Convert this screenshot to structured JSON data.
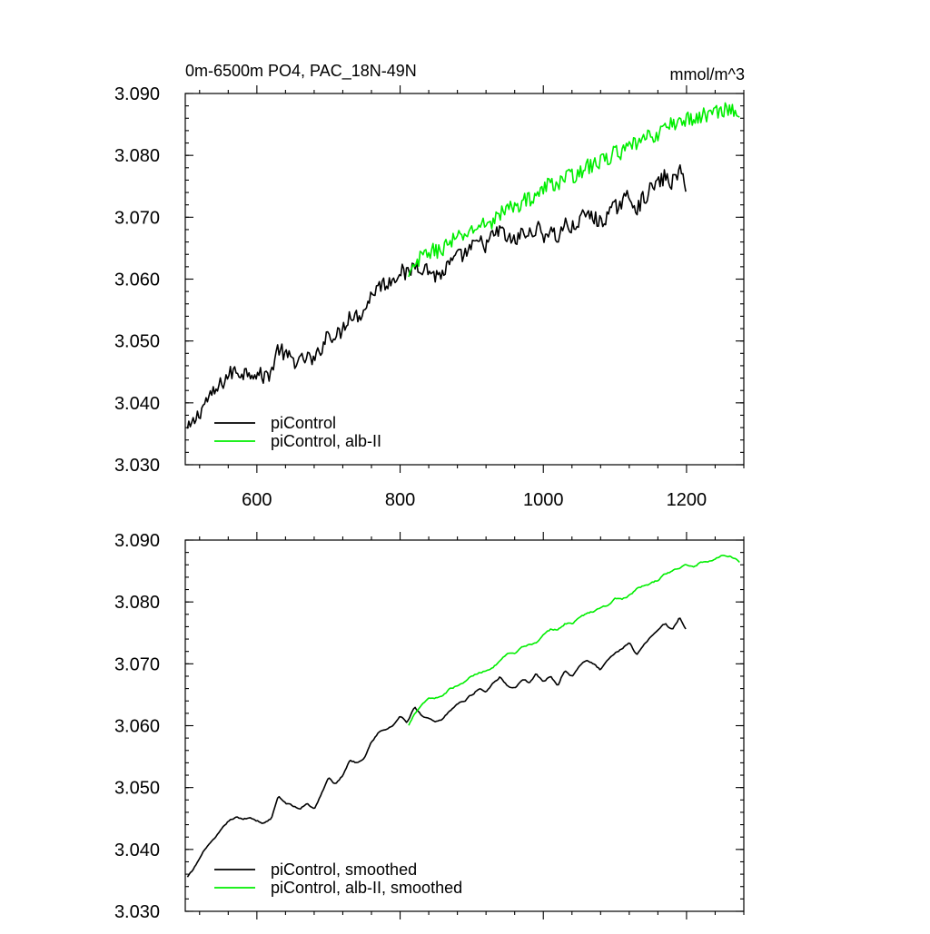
{
  "chart_data": [
    {
      "type": "line",
      "title": "0m-6500m PO4, PAC_18N-49N",
      "units": "mmol/m^3",
      "xlabel": "",
      "ylabel": "",
      "xlim": [
        500,
        1280
      ],
      "ylim": [
        3.03,
        3.09
      ],
      "x_ticks": [
        600,
        800,
        1000,
        1200
      ],
      "y_ticks": [
        "3.030",
        "3.040",
        "3.050",
        "3.060",
        "3.070",
        "3.080",
        "3.090"
      ],
      "legend_position": "bottom-left",
      "series": [
        {
          "name": "piControl",
          "color": "#000000",
          "x": [
            503,
            510,
            520,
            530,
            540,
            550,
            560,
            570,
            580,
            590,
            600,
            610,
            620,
            630,
            640,
            650,
            660,
            670,
            680,
            690,
            700,
            710,
            720,
            730,
            740,
            750,
            760,
            770,
            780,
            790,
            800,
            810,
            820,
            830,
            840,
            850,
            860,
            870,
            880,
            890,
            900,
            910,
            920,
            930,
            940,
            950,
            960,
            970,
            980,
            990,
            1000,
            1010,
            1020,
            1030,
            1040,
            1050,
            1060,
            1070,
            1080,
            1090,
            1100,
            1110,
            1120,
            1130,
            1140,
            1150,
            1160,
            1170,
            1180,
            1190,
            1200
          ],
          "values": [
            3.0355,
            3.0365,
            3.0385,
            3.0405,
            3.0415,
            3.043,
            3.0445,
            3.0452,
            3.0448,
            3.0452,
            3.0447,
            3.0442,
            3.045,
            3.049,
            3.0475,
            3.047,
            3.0465,
            3.0475,
            3.0465,
            3.049,
            3.0515,
            3.0505,
            3.052,
            3.0545,
            3.054,
            3.055,
            3.0575,
            3.059,
            3.0593,
            3.06,
            3.0615,
            3.0605,
            3.0625,
            3.062,
            3.0615,
            3.0605,
            3.061,
            3.0625,
            3.0635,
            3.064,
            3.065,
            3.066,
            3.0655,
            3.067,
            3.068,
            3.0665,
            3.066,
            3.0675,
            3.067,
            3.0685,
            3.067,
            3.068,
            3.0665,
            3.069,
            3.068,
            3.0695,
            3.0705,
            3.07,
            3.069,
            3.0705,
            3.0715,
            3.0725,
            3.0735,
            3.0715,
            3.073,
            3.0745,
            3.0755,
            3.0765,
            3.0755,
            3.0775,
            3.075
          ],
          "jitter_amplitude": 0.0013
        },
        {
          "name": "piControl, alb-II",
          "color": "#00ee00",
          "x": [
            812,
            820,
            830,
            840,
            850,
            860,
            870,
            880,
            890,
            900,
            910,
            920,
            930,
            940,
            950,
            960,
            970,
            980,
            990,
            1000,
            1010,
            1020,
            1030,
            1040,
            1050,
            1060,
            1070,
            1080,
            1090,
            1100,
            1110,
            1120,
            1130,
            1140,
            1150,
            1160,
            1170,
            1180,
            1190,
            1200,
            1210,
            1220,
            1230,
            1240,
            1250,
            1260,
            1270,
            1275
          ],
          "values": [
            3.06,
            3.062,
            3.0635,
            3.0645,
            3.0645,
            3.065,
            3.066,
            3.0665,
            3.067,
            3.068,
            3.0685,
            3.069,
            3.0695,
            3.0705,
            3.0715,
            3.0715,
            3.0725,
            3.073,
            3.0735,
            3.0745,
            3.0755,
            3.0755,
            3.0765,
            3.0765,
            3.0775,
            3.078,
            3.0785,
            3.079,
            3.0795,
            3.0805,
            3.0805,
            3.081,
            3.082,
            3.0825,
            3.083,
            3.0835,
            3.0845,
            3.085,
            3.0855,
            3.086,
            3.0855,
            3.0865,
            3.0865,
            3.087,
            3.0875,
            3.0875,
            3.087,
            3.0865
          ],
          "jitter_amplitude": 0.0013
        }
      ]
    },
    {
      "type": "line",
      "title": "",
      "units": "",
      "xlabel": "",
      "ylabel": "",
      "xlim": [
        500,
        1280
      ],
      "ylim": [
        3.03,
        3.09
      ],
      "x_ticks": [
        600,
        800,
        1000,
        1200
      ],
      "x_tick_labels_visible": false,
      "y_ticks": [
        "3.030",
        "3.040",
        "3.050",
        "3.060",
        "3.070",
        "3.080",
        "3.090"
      ],
      "legend_position": "bottom-left",
      "series": [
        {
          "name": "piControl, smoothed",
          "color": "#000000",
          "x": [
            503,
            510,
            520,
            530,
            540,
            550,
            560,
            570,
            580,
            590,
            600,
            610,
            620,
            630,
            640,
            650,
            660,
            670,
            680,
            690,
            700,
            710,
            720,
            730,
            740,
            750,
            760,
            770,
            780,
            790,
            800,
            810,
            820,
            830,
            840,
            850,
            860,
            870,
            880,
            890,
            900,
            910,
            920,
            930,
            940,
            950,
            960,
            970,
            980,
            990,
            1000,
            1010,
            1020,
            1030,
            1040,
            1050,
            1060,
            1070,
            1080,
            1090,
            1100,
            1110,
            1120,
            1130,
            1140,
            1150,
            1160,
            1170,
            1180,
            1190,
            1200
          ],
          "values": [
            3.0355,
            3.0365,
            3.0385,
            3.0405,
            3.0415,
            3.043,
            3.0445,
            3.0452,
            3.0448,
            3.0452,
            3.0447,
            3.0442,
            3.045,
            3.0485,
            3.0475,
            3.047,
            3.0465,
            3.0475,
            3.0465,
            3.049,
            3.0515,
            3.0505,
            3.052,
            3.0545,
            3.054,
            3.055,
            3.0575,
            3.059,
            3.0593,
            3.06,
            3.0615,
            3.0605,
            3.063,
            3.0615,
            3.061,
            3.0605,
            3.061,
            3.0625,
            3.0635,
            3.064,
            3.065,
            3.066,
            3.0655,
            3.067,
            3.068,
            3.0665,
            3.066,
            3.0675,
            3.067,
            3.0685,
            3.067,
            3.068,
            3.0665,
            3.069,
            3.068,
            3.0695,
            3.0705,
            3.07,
            3.069,
            3.0705,
            3.0715,
            3.0725,
            3.0735,
            3.0715,
            3.073,
            3.0745,
            3.0755,
            3.0765,
            3.0755,
            3.0775,
            3.0755
          ],
          "jitter_amplitude": 0.0004
        },
        {
          "name": "piControl, alb-II, smoothed",
          "color": "#00ee00",
          "x": [
            812,
            820,
            830,
            840,
            850,
            860,
            870,
            880,
            890,
            900,
            910,
            920,
            930,
            940,
            950,
            960,
            970,
            980,
            990,
            1000,
            1010,
            1020,
            1030,
            1040,
            1050,
            1060,
            1070,
            1080,
            1090,
            1100,
            1110,
            1120,
            1130,
            1140,
            1150,
            1160,
            1170,
            1180,
            1190,
            1200,
            1210,
            1220,
            1230,
            1240,
            1250,
            1260,
            1270,
            1275
          ],
          "values": [
            3.06,
            3.062,
            3.0635,
            3.0645,
            3.0645,
            3.065,
            3.066,
            3.0665,
            3.067,
            3.068,
            3.0685,
            3.069,
            3.0695,
            3.0705,
            3.0715,
            3.0715,
            3.0725,
            3.073,
            3.0735,
            3.0745,
            3.0755,
            3.0755,
            3.0765,
            3.0765,
            3.0775,
            3.078,
            3.0785,
            3.079,
            3.0795,
            3.0805,
            3.0805,
            3.081,
            3.082,
            3.0825,
            3.083,
            3.0835,
            3.0845,
            3.085,
            3.0855,
            3.086,
            3.0855,
            3.0865,
            3.0865,
            3.087,
            3.0875,
            3.0875,
            3.087,
            3.0865
          ],
          "jitter_amplitude": 0.0004
        }
      ]
    }
  ]
}
